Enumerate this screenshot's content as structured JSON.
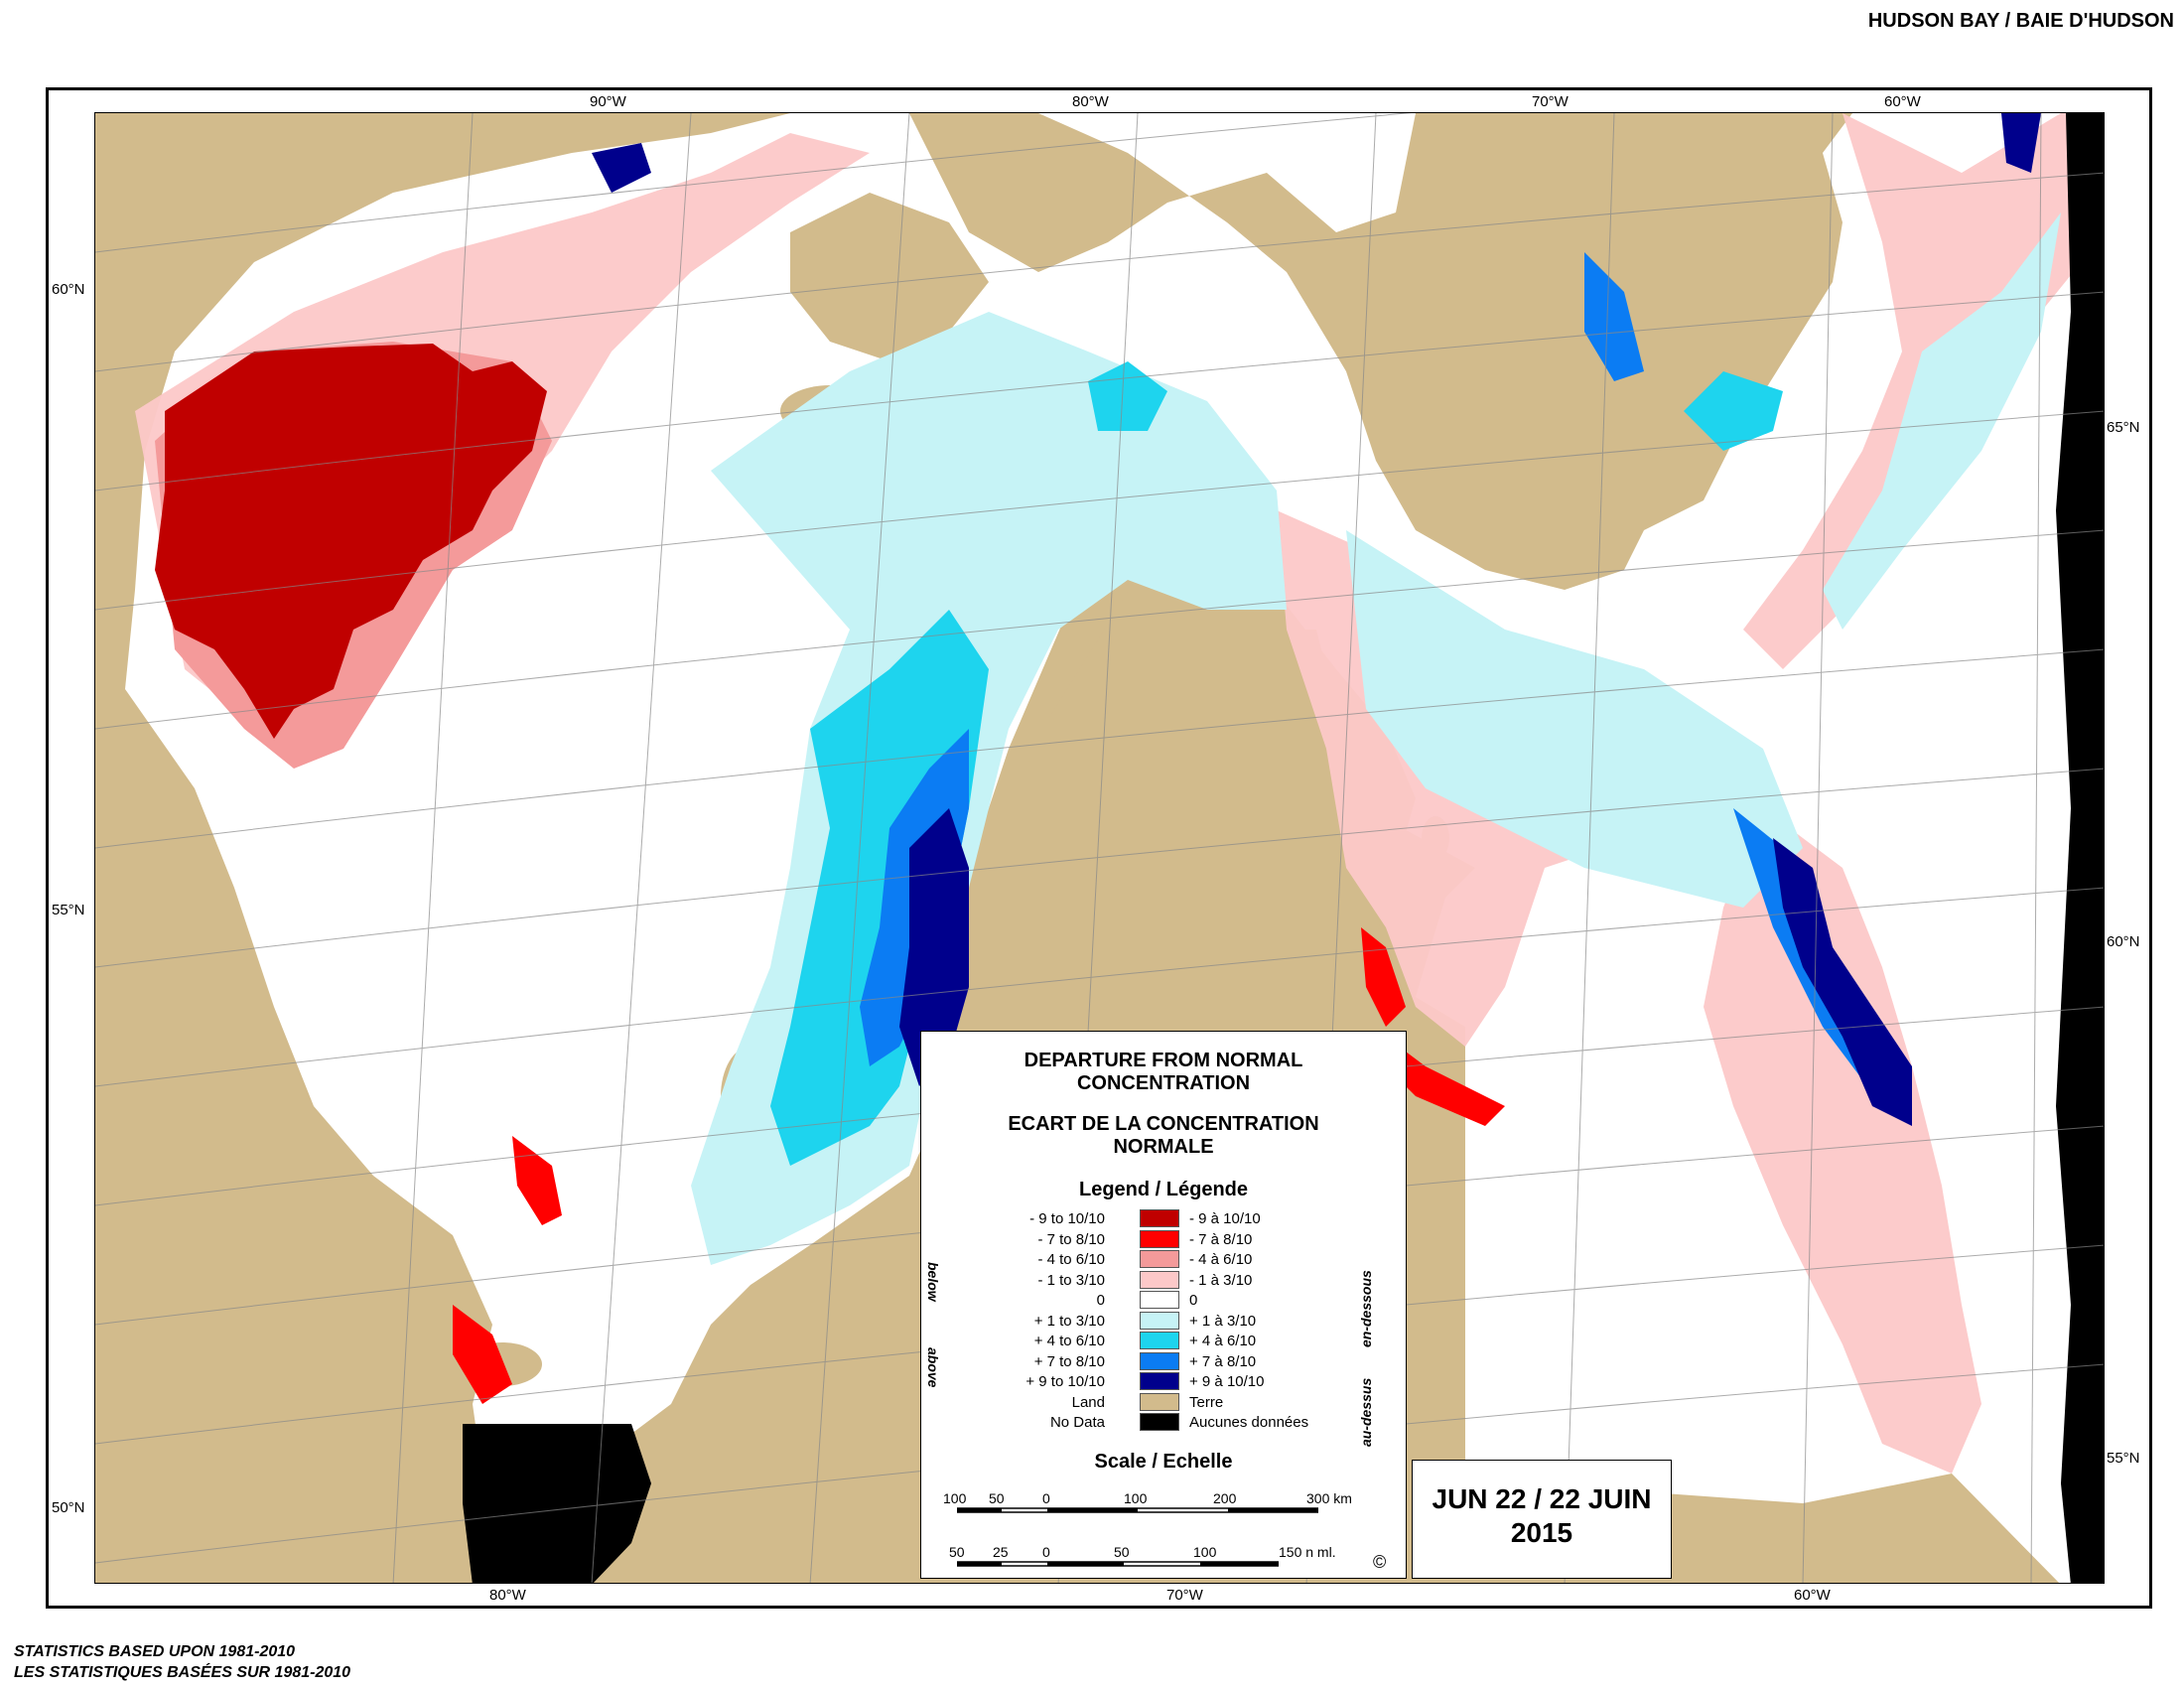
{
  "region_title": "HUDSON BAY / BAIE D'HUDSON",
  "longitude_labels_top": [
    "90°W",
    "80°W",
    "70°W",
    "60°W"
  ],
  "longitude_labels_bottom": [
    "80°W",
    "70°W",
    "60°W"
  ],
  "latitude_labels_left": [
    "60°N",
    "55°N",
    "50°N"
  ],
  "latitude_labels_right": [
    "65°N",
    "60°N",
    "55°N"
  ],
  "legend": {
    "title_en": "DEPARTURE FROM NORMAL CONCENTRATION",
    "title_fr": "ECART DE LA CONCENTRATION NORMALE",
    "legend_heading": "Legend / Légende",
    "side_below": "below",
    "side_above": "above",
    "side_en_dessous": "en-dessous",
    "side_au_dessus": "au-dessus",
    "items": [
      {
        "en": "- 9 to 10/10",
        "fr": "- 9 à 10/10",
        "color": "#c00000"
      },
      {
        "en": "- 7 to 8/10",
        "fr": "- 7 à 8/10",
        "color": "#ff0000"
      },
      {
        "en": "- 4 to 6/10",
        "fr": "- 4 à 6/10",
        "color": "#f49a9a"
      },
      {
        "en": "- 1 to 3/10",
        "fr": "- 1 à 3/10",
        "color": "#fcc8c8"
      },
      {
        "en": "0",
        "fr": "0",
        "color": "#ffffff"
      },
      {
        "en": "+ 1 to 3/10",
        "fr": "+ 1 à 3/10",
        "color": "#c6f3f6"
      },
      {
        "en": "+ 4 to 6/10",
        "fr": "+ 4 à 6/10",
        "color": "#1ed4ee"
      },
      {
        "en": "+ 7 to 8/10",
        "fr": "+ 7 à 8/10",
        "color": "#0b7cf3"
      },
      {
        "en": "+ 9 to 10/10",
        "fr": "+ 9 à 10/10",
        "color": "#00008c"
      },
      {
        "en": "Land",
        "fr": "Terre",
        "color": "#d2bb8c"
      },
      {
        "en": "No Data",
        "fr": "Aucunes données",
        "color": "#000000"
      }
    ],
    "scale_heading": "Scale / Echelle",
    "km_ticks": [
      "100",
      "50",
      "0",
      "100",
      "200",
      "300 km"
    ],
    "nmi_ticks": [
      "50",
      "25",
      "0",
      "50",
      "100",
      "150 n ml."
    ],
    "copyright": "©"
  },
  "date": {
    "line1": "JUN 22 / 22 JUIN",
    "line2": "2015"
  },
  "footer": {
    "line1": "STATISTICS BASED UPON 1981-2010",
    "line2": "LES STATISTIQUES BASÉES SUR 1981-2010"
  },
  "colors": {
    "land": "#d2bb8c",
    "nodata": "#000000",
    "water": "#ffffff"
  }
}
